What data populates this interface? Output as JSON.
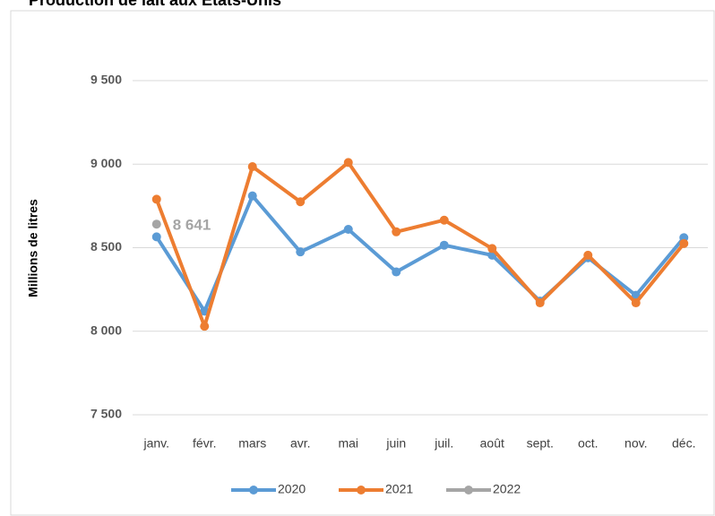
{
  "chart_data": {
    "type": "line",
    "title": "Production de lait aux États-Unis",
    "y_label": "Millions de litres",
    "categories": [
      "janv.",
      "févr.",
      "mars",
      "avr.",
      "mai",
      "juin",
      "juil.",
      "août",
      "sept.",
      "oct.",
      "nov.",
      "déc."
    ],
    "series": [
      {
        "name": "2020",
        "color": "#5b9bd5",
        "values": [
          8565,
          8120,
          8810,
          8475,
          8610,
          8355,
          8515,
          8455,
          8180,
          8440,
          8215,
          8560
        ]
      },
      {
        "name": "2021",
        "color": "#ed7d31",
        "values": [
          8790,
          8030,
          8985,
          8775,
          9010,
          8595,
          8665,
          8495,
          8170,
          8455,
          8170,
          8525
        ]
      },
      {
        "name": "2022",
        "color": "#a5a5a5",
        "values": [
          8641,
          null,
          null,
          null,
          null,
          null,
          null,
          null,
          null,
          null,
          null,
          null
        ],
        "value_labels": [
          "8 641",
          null,
          null,
          null,
          null,
          null,
          null,
          null,
          null,
          null,
          null,
          null
        ]
      }
    ],
    "ylim": [
      7500,
      9500
    ],
    "yticks": [
      {
        "value": 7500,
        "label": "7 500"
      },
      {
        "value": 8000,
        "label": "8 000"
      },
      {
        "value": 8500,
        "label": "8 500"
      },
      {
        "value": 9000,
        "label": "9 000"
      },
      {
        "value": 9500,
        "label": "9 500"
      }
    ],
    "grid": true
  }
}
